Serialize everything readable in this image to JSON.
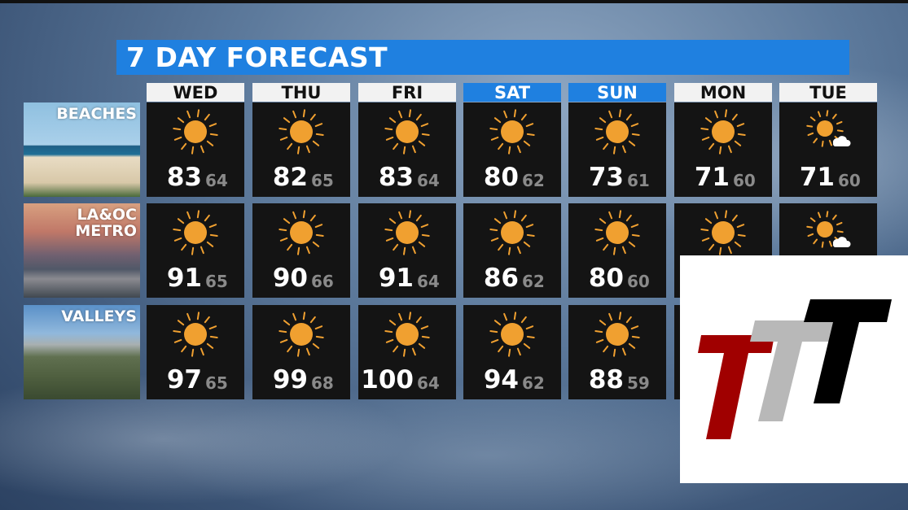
{
  "title": "7 DAY FORECAST",
  "days": [
    {
      "label": "WED",
      "weekend": false
    },
    {
      "label": "THU",
      "weekend": false
    },
    {
      "label": "FRI",
      "weekend": false
    },
    {
      "label": "SAT",
      "weekend": true
    },
    {
      "label": "SUN",
      "weekend": true
    },
    {
      "label": "MON",
      "weekend": false
    },
    {
      "label": "TUE",
      "weekend": false
    }
  ],
  "regions": [
    {
      "label": "BEACHES",
      "cells": [
        {
          "icon": "sunny",
          "hi": "83",
          "lo": "64"
        },
        {
          "icon": "sunny",
          "hi": "82",
          "lo": "65"
        },
        {
          "icon": "sunny",
          "hi": "83",
          "lo": "64"
        },
        {
          "icon": "sunny",
          "hi": "80",
          "lo": "62"
        },
        {
          "icon": "sunny",
          "hi": "73",
          "lo": "61"
        },
        {
          "icon": "sunny",
          "hi": "71",
          "lo": "60"
        },
        {
          "icon": "mostly-sunny",
          "hi": "71",
          "lo": "60"
        }
      ]
    },
    {
      "label": "LA&OC\nMETRO",
      "cells": [
        {
          "icon": "sunny",
          "hi": "91",
          "lo": "65"
        },
        {
          "icon": "sunny",
          "hi": "90",
          "lo": "66"
        },
        {
          "icon": "sunny",
          "hi": "91",
          "lo": "64"
        },
        {
          "icon": "sunny",
          "hi": "86",
          "lo": "62"
        },
        {
          "icon": "sunny",
          "hi": "80",
          "lo": "60"
        },
        {
          "icon": "sunny",
          "hi": null,
          "lo": null
        },
        {
          "icon": "mostly-sunny",
          "hi": null,
          "lo": null
        }
      ]
    },
    {
      "label": "VALLEYS",
      "cells": [
        {
          "icon": "sunny",
          "hi": "97",
          "lo": "65"
        },
        {
          "icon": "sunny",
          "hi": "99",
          "lo": "68"
        },
        {
          "icon": "sunny",
          "hi": "100",
          "lo": "64"
        },
        {
          "icon": "sunny",
          "hi": "94",
          "lo": "62"
        },
        {
          "icon": "sunny",
          "hi": "88",
          "lo": "59"
        },
        {
          "icon": null,
          "hi": null,
          "lo": null
        },
        {
          "icon": null,
          "hi": null,
          "lo": null
        }
      ]
    }
  ],
  "colors": {
    "title_bar": "#1f80e0",
    "sun": "#f0a030",
    "logo_red": "#a00000",
    "logo_gray": "#b8b8b8",
    "logo_black": "#000000"
  },
  "logo": {
    "text": "TTT"
  }
}
